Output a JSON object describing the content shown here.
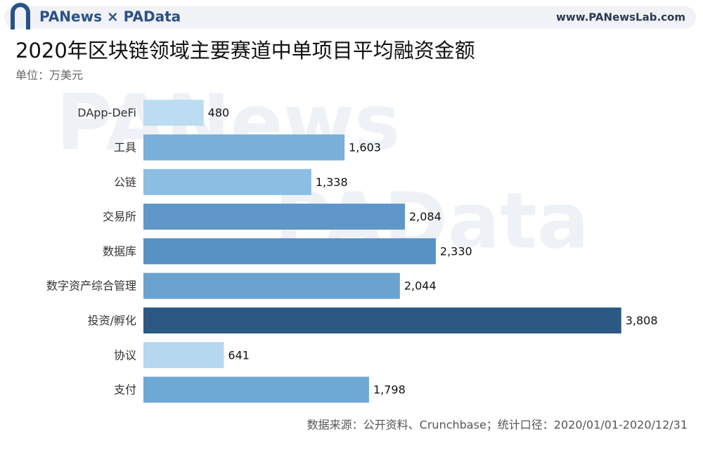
{
  "header": {
    "brand": "PANews × PAData",
    "url": "www.PANewsLab.com"
  },
  "watermarks": [
    "PANews",
    "PAData"
  ],
  "chart_data": {
    "type": "bar",
    "orientation": "horizontal",
    "title": "2020年区块链领域主要赛道中单项目平均融资金额",
    "subtitle": "单位：万美元",
    "source": "数据来源：公开资料、Crunchbase；统计口径：2020/01/01-2020/12/31",
    "categories": [
      "DApp-DeFi",
      "工具",
      "公链",
      "交易所",
      "数据库",
      "数字资产综合管理",
      "投资/孵化",
      "协议",
      "支付"
    ],
    "values": [
      480,
      1603,
      1338,
      2084,
      2330,
      2044,
      3808,
      641,
      1798
    ],
    "value_labels": [
      "480",
      "1,603",
      "1,338",
      "2,084",
      "2,330",
      "2,044",
      "3,808",
      "641",
      "1,798"
    ],
    "colors": [
      "#bcdcf1",
      "#79afd8",
      "#8bbee2",
      "#5e97c8",
      "#5891c3",
      "#6aa3d0",
      "#2c5984",
      "#b5d7ef",
      "#6ea8d4"
    ],
    "xlim": [
      0,
      4000
    ]
  }
}
